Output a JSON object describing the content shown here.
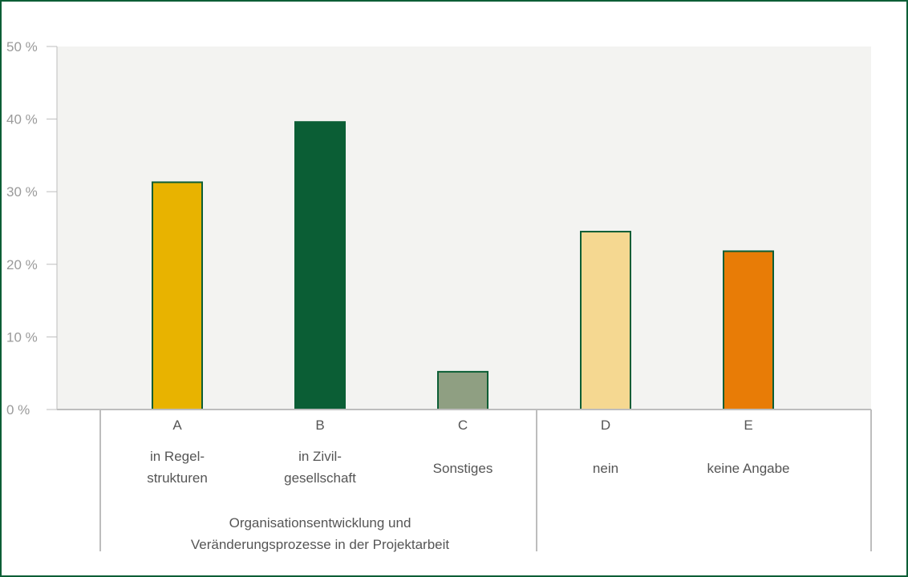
{
  "chart_data": {
    "type": "bar",
    "categories": [
      "A",
      "B",
      "C",
      "D",
      "E"
    ],
    "category_labels": [
      [
        "in Regel-",
        "strukturen"
      ],
      [
        "in Zivil-",
        "gesellschaft"
      ],
      [
        "Sonstiges"
      ],
      [
        "nein"
      ],
      [
        "keine Angabe"
      ]
    ],
    "values": [
      31.3,
      39.6,
      5.2,
      24.5,
      21.8
    ],
    "colors": [
      "#e8b300",
      "#0b5e35",
      "#8f9f82",
      "#f5d891",
      "#e87c06"
    ],
    "bar_outline": "#0b5e35",
    "ylim": [
      0,
      50
    ],
    "yticks": [
      0,
      10,
      20,
      30,
      40,
      50
    ],
    "ytick_labels": [
      "0 %",
      "10 %",
      "20 %",
      "30 %",
      "40 %",
      "50 %"
    ],
    "group_label": [
      "Organisationsentwicklung und",
      "Veränderungsprozesse in der Projektarbeit"
    ],
    "grid": false,
    "plot_background": "#f3f3f1",
    "frame_color": "#0b5e35"
  }
}
